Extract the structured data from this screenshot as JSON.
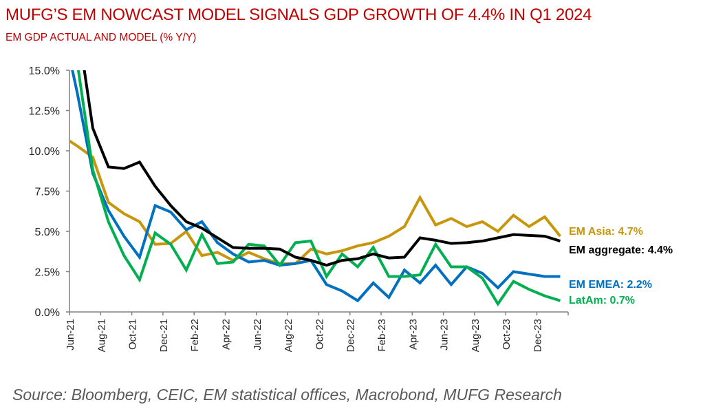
{
  "title": "MUFG’S EM NOWCAST MODEL SIGNALS GDP GROWTH OF 4.4% IN Q1 2024",
  "subtitle": "EM GDP ACTUAL AND MODEL (% Y/Y)",
  "source": "Source: Bloomberg, CEIC, EM statistical offices, Macrobond, MUFG Research",
  "chart_data": {
    "type": "line",
    "title": "EM GDP ACTUAL AND MODEL (% Y/Y)",
    "xlabel": "",
    "ylabel": "",
    "ylim": [
      0,
      15
    ],
    "yticks": [
      "0.0%",
      "2.5%",
      "5.0%",
      "7.5%",
      "10.0%",
      "12.5%",
      "15.0%"
    ],
    "ytick_values": [
      0,
      2.5,
      5,
      7.5,
      10,
      12.5,
      15
    ],
    "xtick_labels": [
      "Jun-21",
      "Aug-21",
      "Oct-21",
      "Dec-21",
      "Feb-22",
      "Apr-22",
      "Jun-22",
      "Aug-22",
      "Oct-22",
      "Dec-22",
      "Feb-23",
      "Apr-23",
      "Jun-23",
      "Aug-23",
      "Oct-23",
      "Dec-23"
    ],
    "x": [
      "Jul-21",
      "Aug-21",
      "Sep-21",
      "Oct-21",
      "Nov-21",
      "Dec-21",
      "Jan-22",
      "Feb-22",
      "Mar-22",
      "Apr-22",
      "May-22",
      "Jun-22",
      "Jul-22",
      "Aug-22",
      "Sep-22",
      "Oct-22",
      "Nov-22",
      "Dec-22",
      "Jan-23",
      "Feb-23",
      "Mar-23",
      "Apr-23",
      "May-23",
      "Jun-23",
      "Jul-23",
      "Aug-23",
      "Sep-23",
      "Oct-23",
      "Nov-23",
      "Dec-23",
      "Jan-24",
      "Feb-24"
    ],
    "grid": false,
    "series": [
      {
        "name": "EM Asia",
        "color": "#c8960a",
        "end_label": "EM Asia: 4.7%",
        "values": [
          10.3,
          9.6,
          6.8,
          6.1,
          5.6,
          4.2,
          4.25,
          5.0,
          3.5,
          3.7,
          3.2,
          3.7,
          3.3,
          3.0,
          3.0,
          3.9,
          3.6,
          3.8,
          4.1,
          4.3,
          4.7,
          5.3,
          7.1,
          5.4,
          5.8,
          5.3,
          5.6,
          5.0,
          6.0,
          5.3,
          5.9,
          4.7
        ]
      },
      {
        "name": "EM aggregate",
        "color": "#000000",
        "end_label": "EM aggregate: 4.4%",
        "values": [
          18.0,
          11.4,
          9.0,
          8.9,
          9.3,
          7.8,
          6.6,
          5.6,
          5.2,
          4.6,
          4.0,
          3.95,
          3.95,
          3.9,
          3.4,
          3.2,
          2.9,
          3.2,
          3.3,
          3.6,
          3.35,
          3.4,
          4.6,
          4.45,
          4.25,
          4.3,
          4.4,
          4.6,
          4.8,
          4.75,
          4.7,
          4.4
        ]
      },
      {
        "name": "EM EMEA",
        "color": "#0070c0",
        "end_label": "EM EMEA: 2.2%",
        "values": [
          13.6,
          8.6,
          6.3,
          4.7,
          3.4,
          6.6,
          6.2,
          5.1,
          5.6,
          4.3,
          3.6,
          3.1,
          3.2,
          2.9,
          3.0,
          3.2,
          1.7,
          1.3,
          0.7,
          1.8,
          0.9,
          2.6,
          1.8,
          2.9,
          1.7,
          2.8,
          2.4,
          1.5,
          2.5,
          2.35,
          2.2,
          2.2
        ]
      },
      {
        "name": "LatAm",
        "color": "#00b050",
        "end_label": "LatAm: 0.7%",
        "values": [
          15.5,
          8.8,
          5.6,
          3.5,
          2.0,
          4.9,
          4.2,
          2.6,
          4.8,
          3.0,
          3.1,
          4.2,
          4.1,
          2.9,
          4.3,
          4.4,
          2.2,
          3.6,
          2.8,
          4.0,
          2.2,
          2.2,
          2.3,
          4.2,
          2.8,
          2.8,
          2.1,
          0.5,
          1.9,
          1.4,
          1.0,
          0.7
        ]
      }
    ]
  }
}
